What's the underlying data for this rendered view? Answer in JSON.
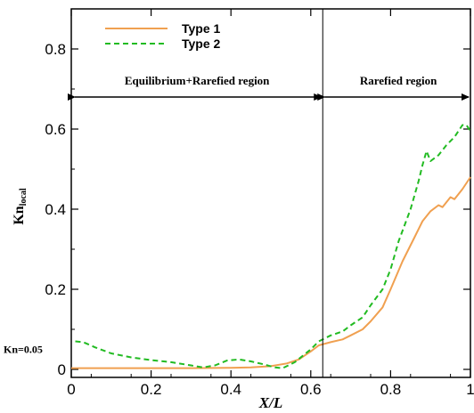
{
  "chart_data": {
    "type": "line",
    "xlabel": "X/L",
    "ylabel_main": "Kn",
    "ylabel_sub": "local",
    "xlim": [
      0,
      1
    ],
    "ylim": [
      -0.02,
      0.9
    ],
    "x_ticks": [
      0,
      0.2,
      0.4,
      0.6,
      0.8,
      1
    ],
    "x_tick_labels": [
      "0",
      "0.2",
      "0.4",
      "0.6",
      "0.8",
      "1"
    ],
    "y_ticks": [
      0,
      0.2,
      0.4,
      0.6,
      0.8
    ],
    "y_tick_labels": [
      "0",
      "0.2",
      "0.4",
      "0.6",
      "0.8"
    ],
    "grid": false,
    "legend_position": "top-left",
    "series": [
      {
        "name": "Type 1",
        "color": "#f0a050",
        "dash": "solid",
        "points": [
          [
            0,
            0.003
          ],
          [
            0.1,
            0.003
          ],
          [
            0.2,
            0.003
          ],
          [
            0.3,
            0.003
          ],
          [
            0.4,
            0.004
          ],
          [
            0.45,
            0.005
          ],
          [
            0.5,
            0.008
          ],
          [
            0.54,
            0.015
          ],
          [
            0.57,
            0.025
          ],
          [
            0.6,
            0.045
          ],
          [
            0.62,
            0.06
          ],
          [
            0.65,
            0.068
          ],
          [
            0.68,
            0.075
          ],
          [
            0.7,
            0.085
          ],
          [
            0.73,
            0.1
          ],
          [
            0.75,
            0.12
          ],
          [
            0.78,
            0.155
          ],
          [
            0.8,
            0.2
          ],
          [
            0.83,
            0.27
          ],
          [
            0.86,
            0.33
          ],
          [
            0.88,
            0.37
          ],
          [
            0.9,
            0.395
          ],
          [
            0.92,
            0.41
          ],
          [
            0.93,
            0.405
          ],
          [
            0.95,
            0.43
          ],
          [
            0.96,
            0.425
          ],
          [
            0.98,
            0.45
          ],
          [
            1.0,
            0.48
          ]
        ]
      },
      {
        "name": "Type 2",
        "color": "#22bb22",
        "dash": "dashed",
        "points": [
          [
            0.01,
            0.07
          ],
          [
            0.03,
            0.068
          ],
          [
            0.06,
            0.055
          ],
          [
            0.1,
            0.04
          ],
          [
            0.15,
            0.03
          ],
          [
            0.2,
            0.023
          ],
          [
            0.25,
            0.018
          ],
          [
            0.3,
            0.01
          ],
          [
            0.33,
            0.005
          ],
          [
            0.36,
            0.01
          ],
          [
            0.39,
            0.022
          ],
          [
            0.42,
            0.025
          ],
          [
            0.45,
            0.02
          ],
          [
            0.48,
            0.013
          ],
          [
            0.51,
            0.005
          ],
          [
            0.53,
            0.003
          ],
          [
            0.56,
            0.018
          ],
          [
            0.6,
            0.05
          ],
          [
            0.62,
            0.07
          ],
          [
            0.65,
            0.085
          ],
          [
            0.68,
            0.095
          ],
          [
            0.7,
            0.11
          ],
          [
            0.73,
            0.13
          ],
          [
            0.75,
            0.16
          ],
          [
            0.78,
            0.2
          ],
          [
            0.8,
            0.25
          ],
          [
            0.82,
            0.32
          ],
          [
            0.85,
            0.4
          ],
          [
            0.87,
            0.47
          ],
          [
            0.88,
            0.51
          ],
          [
            0.89,
            0.545
          ],
          [
            0.9,
            0.52
          ],
          [
            0.92,
            0.535
          ],
          [
            0.94,
            0.56
          ],
          [
            0.96,
            0.58
          ],
          [
            0.98,
            0.61
          ],
          [
            0.99,
            0.61
          ],
          [
            1.0,
            0.595
          ]
        ]
      }
    ],
    "annotations": {
      "divider_x": 0.63,
      "left_region_label": "Equilibrium+Rarefied region",
      "right_region_label": "Rarefied region",
      "region_arrow_y": 0.68,
      "kn_label": "Kn=0.05",
      "kn_label_y": 0.05
    }
  }
}
